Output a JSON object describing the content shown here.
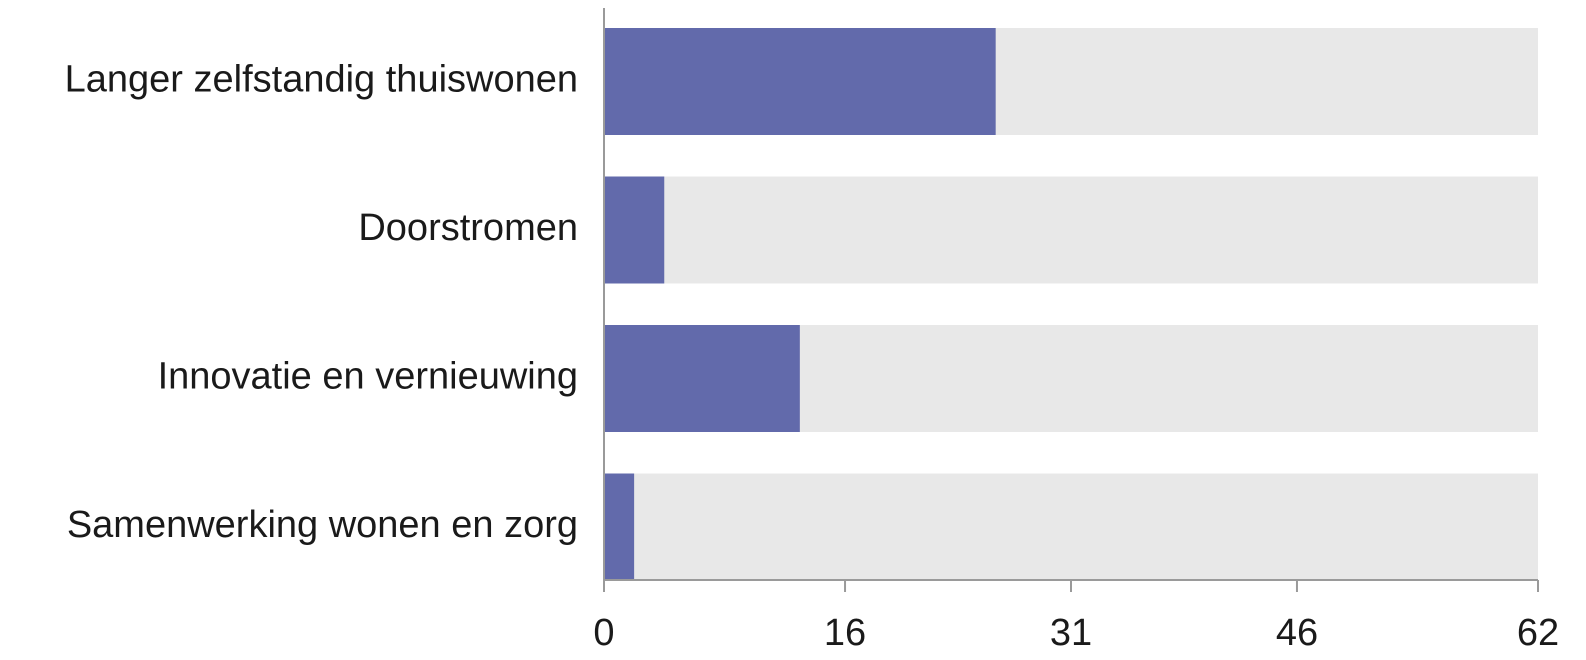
{
  "chart_data": {
    "type": "bar",
    "orientation": "horizontal",
    "categories": [
      "Langer zelfstandig thuiswonen",
      "Doorstromen",
      "Innovatie en vernieuwing",
      "Samenwerking wonen en zorg"
    ],
    "values": [
      26,
      4,
      13,
      2
    ],
    "background_max": 62,
    "xlim": [
      0,
      62
    ],
    "xticks": [
      0,
      16,
      31,
      46,
      62
    ],
    "title": "",
    "xlabel": "",
    "ylabel": "",
    "grid": false,
    "legend": "none",
    "colors": {
      "bar": "#626aab",
      "background_bar": "#e8e8e8",
      "axis": "#9a9a9a",
      "text": "#1a1a1a"
    }
  }
}
